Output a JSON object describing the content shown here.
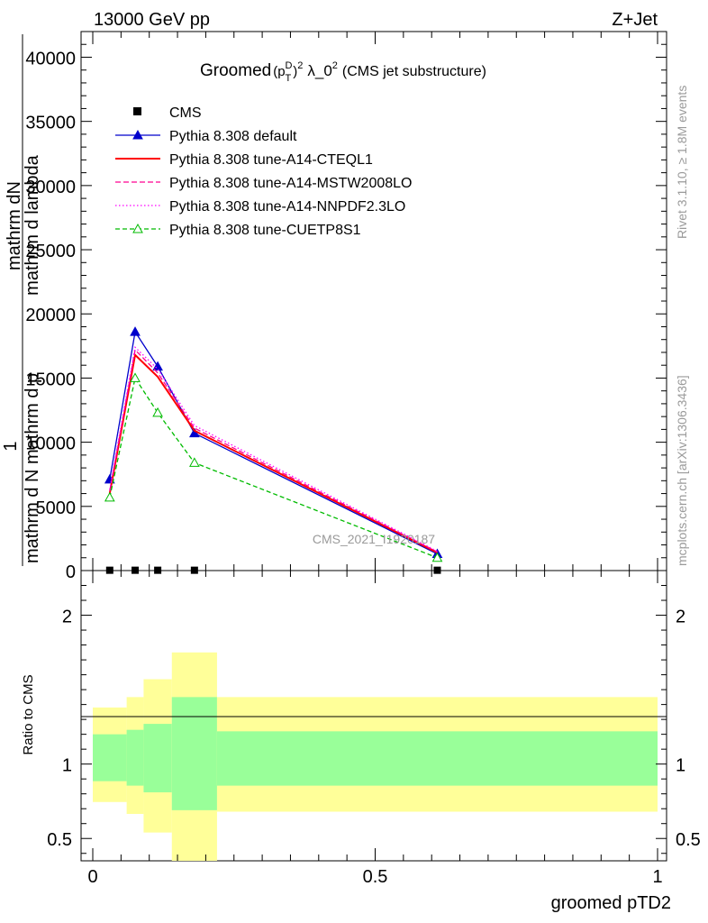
{
  "header": {
    "left": "13000 GeV pp",
    "right": "Z+Jet"
  },
  "side_labels": {
    "rivet": "Rivet 3.1.10, ≥ 1.8M events",
    "mcplots": "mcplots.cern.ch [arXiv:1306.3436]"
  },
  "watermark": "CMS_2021_I1920187",
  "chart_data": {
    "type": "line",
    "title": {
      "prefix": "Groomed",
      "p": "(p",
      "sup_D": "D",
      "sub_T": "T",
      "close": ")",
      "sup_2": "2",
      "lambda": "λ_0",
      "sup_2b": "2",
      "suffix": "(CMS jet substructure)"
    },
    "ylabel": {
      "frac_num": "mathrm dN",
      "left_big": "mathrm d N mathrm d p",
      "left_mid": "mathrm d p",
      "left_rest": "mathrm d lambda",
      "one": "1",
      "frac_den": "mathrm d N"
    },
    "xlabel": "groomed pTD2",
    "ratio_ylabel": "Ratio to CMS",
    "main_yticks": [
      {
        "v": 0,
        "label": "0"
      },
      {
        "v": 5000,
        "label": "5000"
      },
      {
        "v": 10000,
        "label": "10000"
      },
      {
        "v": 15000,
        "label": "15000"
      },
      {
        "v": 20000,
        "label": "20000"
      },
      {
        "v": 25000,
        "label": "25000"
      },
      {
        "v": 30000,
        "label": "30000"
      },
      {
        "v": 35000,
        "label": "35000"
      },
      {
        "v": 40000,
        "label": "40000"
      }
    ],
    "ylim": [
      0,
      42000
    ],
    "xlim": [
      -0.0025,
      1.0
    ],
    "xticks": [
      {
        "v": 0,
        "label": "0"
      },
      {
        "v": 0.5,
        "label": "0.5"
      },
      {
        "v": 1,
        "label": "1"
      }
    ],
    "ratio_ylim": [
      0.35,
      2.3
    ],
    "ratio_yticks": [
      {
        "v": 0.5,
        "label": "0.5"
      },
      {
        "v": 1,
        "label": "1"
      },
      {
        "v": 2,
        "label": "2"
      }
    ],
    "cms": {
      "name": "CMS",
      "x": [
        0.03,
        0.075,
        0.115,
        0.18,
        0.61
      ],
      "y": [
        25,
        25,
        25,
        25,
        25
      ]
    },
    "series": [
      {
        "name": "Pythia 8.308 default",
        "color": "#0000cc",
        "dash": "",
        "marker": "triangle-filled",
        "x": [
          0.03,
          0.075,
          0.115,
          0.18,
          0.61
        ],
        "y": [
          7100,
          18600,
          15900,
          10700,
          1300
        ]
      },
      {
        "name": "Pythia 8.308 tune-A14-CTEQL1",
        "color": "#ff0000",
        "dash": "",
        "marker": "none",
        "x": [
          0.03,
          0.075,
          0.115,
          0.18,
          0.61
        ],
        "y": [
          6000,
          16800,
          15100,
          10900,
          1400
        ]
      },
      {
        "name": "Pythia 8.308 tune-A14-MSTW2008LO",
        "color": "#ff0090",
        "dash": "6,3",
        "marker": "none",
        "x": [
          0.03,
          0.075,
          0.115,
          0.18,
          0.61
        ],
        "y": [
          6200,
          17200,
          15400,
          11100,
          1450
        ]
      },
      {
        "name": "Pythia 8.308 tune-A14-NNPDF2.3LO",
        "color": "#ff00ff",
        "dash": "1.5,2.5",
        "marker": "none",
        "x": [
          0.03,
          0.075,
          0.115,
          0.18,
          0.61
        ],
        "y": [
          6300,
          17400,
          15700,
          11300,
          1500
        ]
      },
      {
        "name": "Pythia 8.308 tune-CUETP8S1",
        "color": "#00bb00",
        "dash": "5,3",
        "marker": "triangle-open",
        "x": [
          0.03,
          0.075,
          0.115,
          0.18,
          0.61
        ],
        "y": [
          5700,
          15000,
          12300,
          8400,
          1000
        ]
      }
    ],
    "ratio_bands": [
      {
        "x0": 0.0,
        "x1": 0.06,
        "y_lo": 0.745,
        "y_hi": 1.38,
        "g_lo": 0.885,
        "g_hi": 1.2
      },
      {
        "x0": 0.06,
        "x1": 0.09,
        "y_lo": 0.665,
        "y_hi": 1.45,
        "g_lo": 0.855,
        "g_hi": 1.23
      },
      {
        "x0": 0.09,
        "x1": 0.14,
        "y_lo": 0.54,
        "y_hi": 1.57,
        "g_lo": 0.81,
        "g_hi": 1.27
      },
      {
        "x0": 0.14,
        "x1": 0.22,
        "y_lo": 0.35,
        "y_hi": 1.75,
        "g_lo": 0.69,
        "g_hi": 1.45
      },
      {
        "x0": 0.22,
        "x1": 1.0,
        "y_lo": 0.68,
        "y_hi": 1.45,
        "g_lo": 0.855,
        "g_hi": 1.22
      }
    ]
  }
}
